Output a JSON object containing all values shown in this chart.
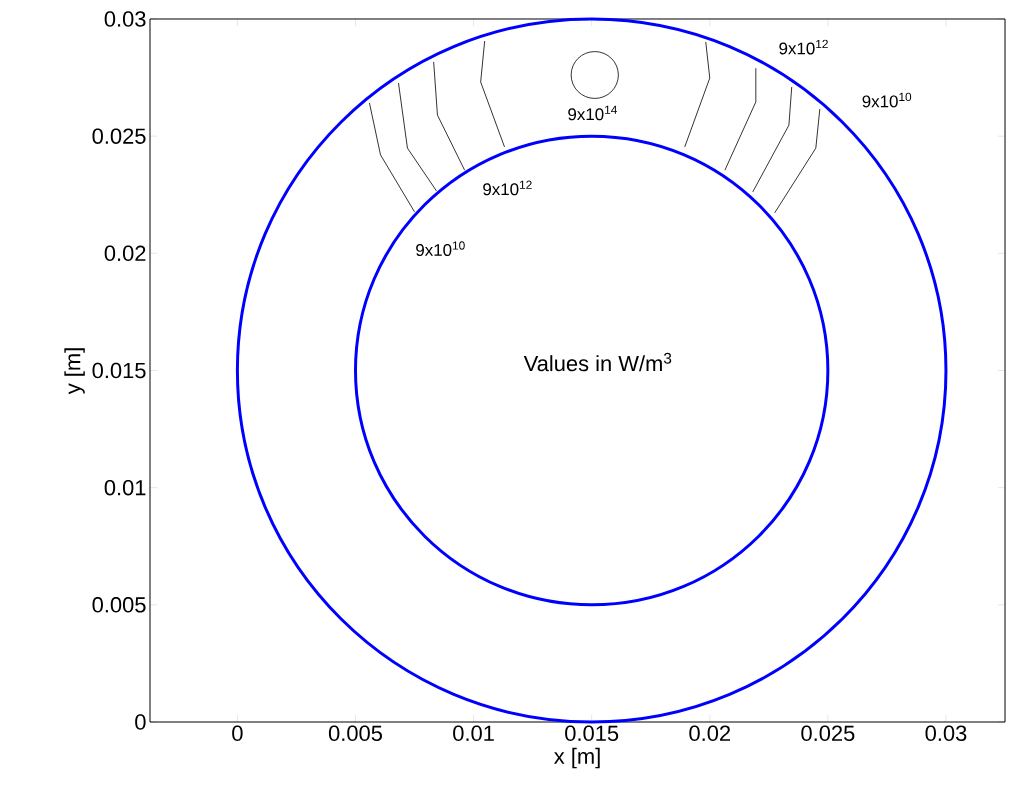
{
  "chart_data": {
    "type": "line",
    "xlabel": "x [m]",
    "ylabel": "y [m]",
    "xlim": [
      -0.0037,
      0.0325
    ],
    "ylim": [
      0,
      0.03
    ],
    "xticks": [
      0,
      0.005,
      0.01,
      0.015,
      0.02,
      0.025,
      0.03
    ],
    "yticks": [
      0,
      0.005,
      0.01,
      0.015,
      0.02,
      0.025,
      0.03
    ],
    "series": [
      {
        "color": "#000000",
        "x": [
          0.00559,
          0.00606,
          0.0075
        ],
        "values": [
          0.02642,
          0.0242,
          0.02177
        ]
      },
      {
        "color": "#000000",
        "x": [
          0.00682,
          0.0072,
          0.00843
        ],
        "values": [
          0.02727,
          0.02449,
          0.02266
        ]
      },
      {
        "color": "#000000",
        "x": [
          0.00831,
          0.00847,
          0.00962
        ],
        "values": [
          0.02817,
          0.0259,
          0.02355
        ]
      },
      {
        "color": "#000000",
        "x": [
          0.01047,
          0.0103,
          0.01131
        ],
        "values": [
          0.02906,
          0.02731,
          0.02454
        ]
      },
      {
        "color": "#000000",
        "x": [
          0.01983,
          0.02,
          0.01894
        ],
        "values": [
          0.02902,
          0.02748,
          0.02454
        ]
      },
      {
        "color": "#000000",
        "x": [
          0.02195,
          0.02195,
          0.02064
        ],
        "values": [
          0.0279,
          0.02646,
          0.02355
        ]
      },
      {
        "color": "#000000",
        "x": [
          0.02347,
          0.02335,
          0.02182
        ],
        "values": [
          0.0271,
          0.02547,
          0.02262
        ]
      },
      {
        "color": "#000000",
        "x": [
          0.02466,
          0.02449,
          0.02275
        ],
        "values": [
          0.02616,
          0.02449,
          0.02173
        ]
      }
    ],
    "annotations": [
      "9x10$^{10}$",
      "9x10$^{12}$",
      "9x10$^{14}$",
      "9x10$^{12}$",
      "9x10$^{10}$",
      "Values in W/m$^{3}$"
    ]
  }
}
